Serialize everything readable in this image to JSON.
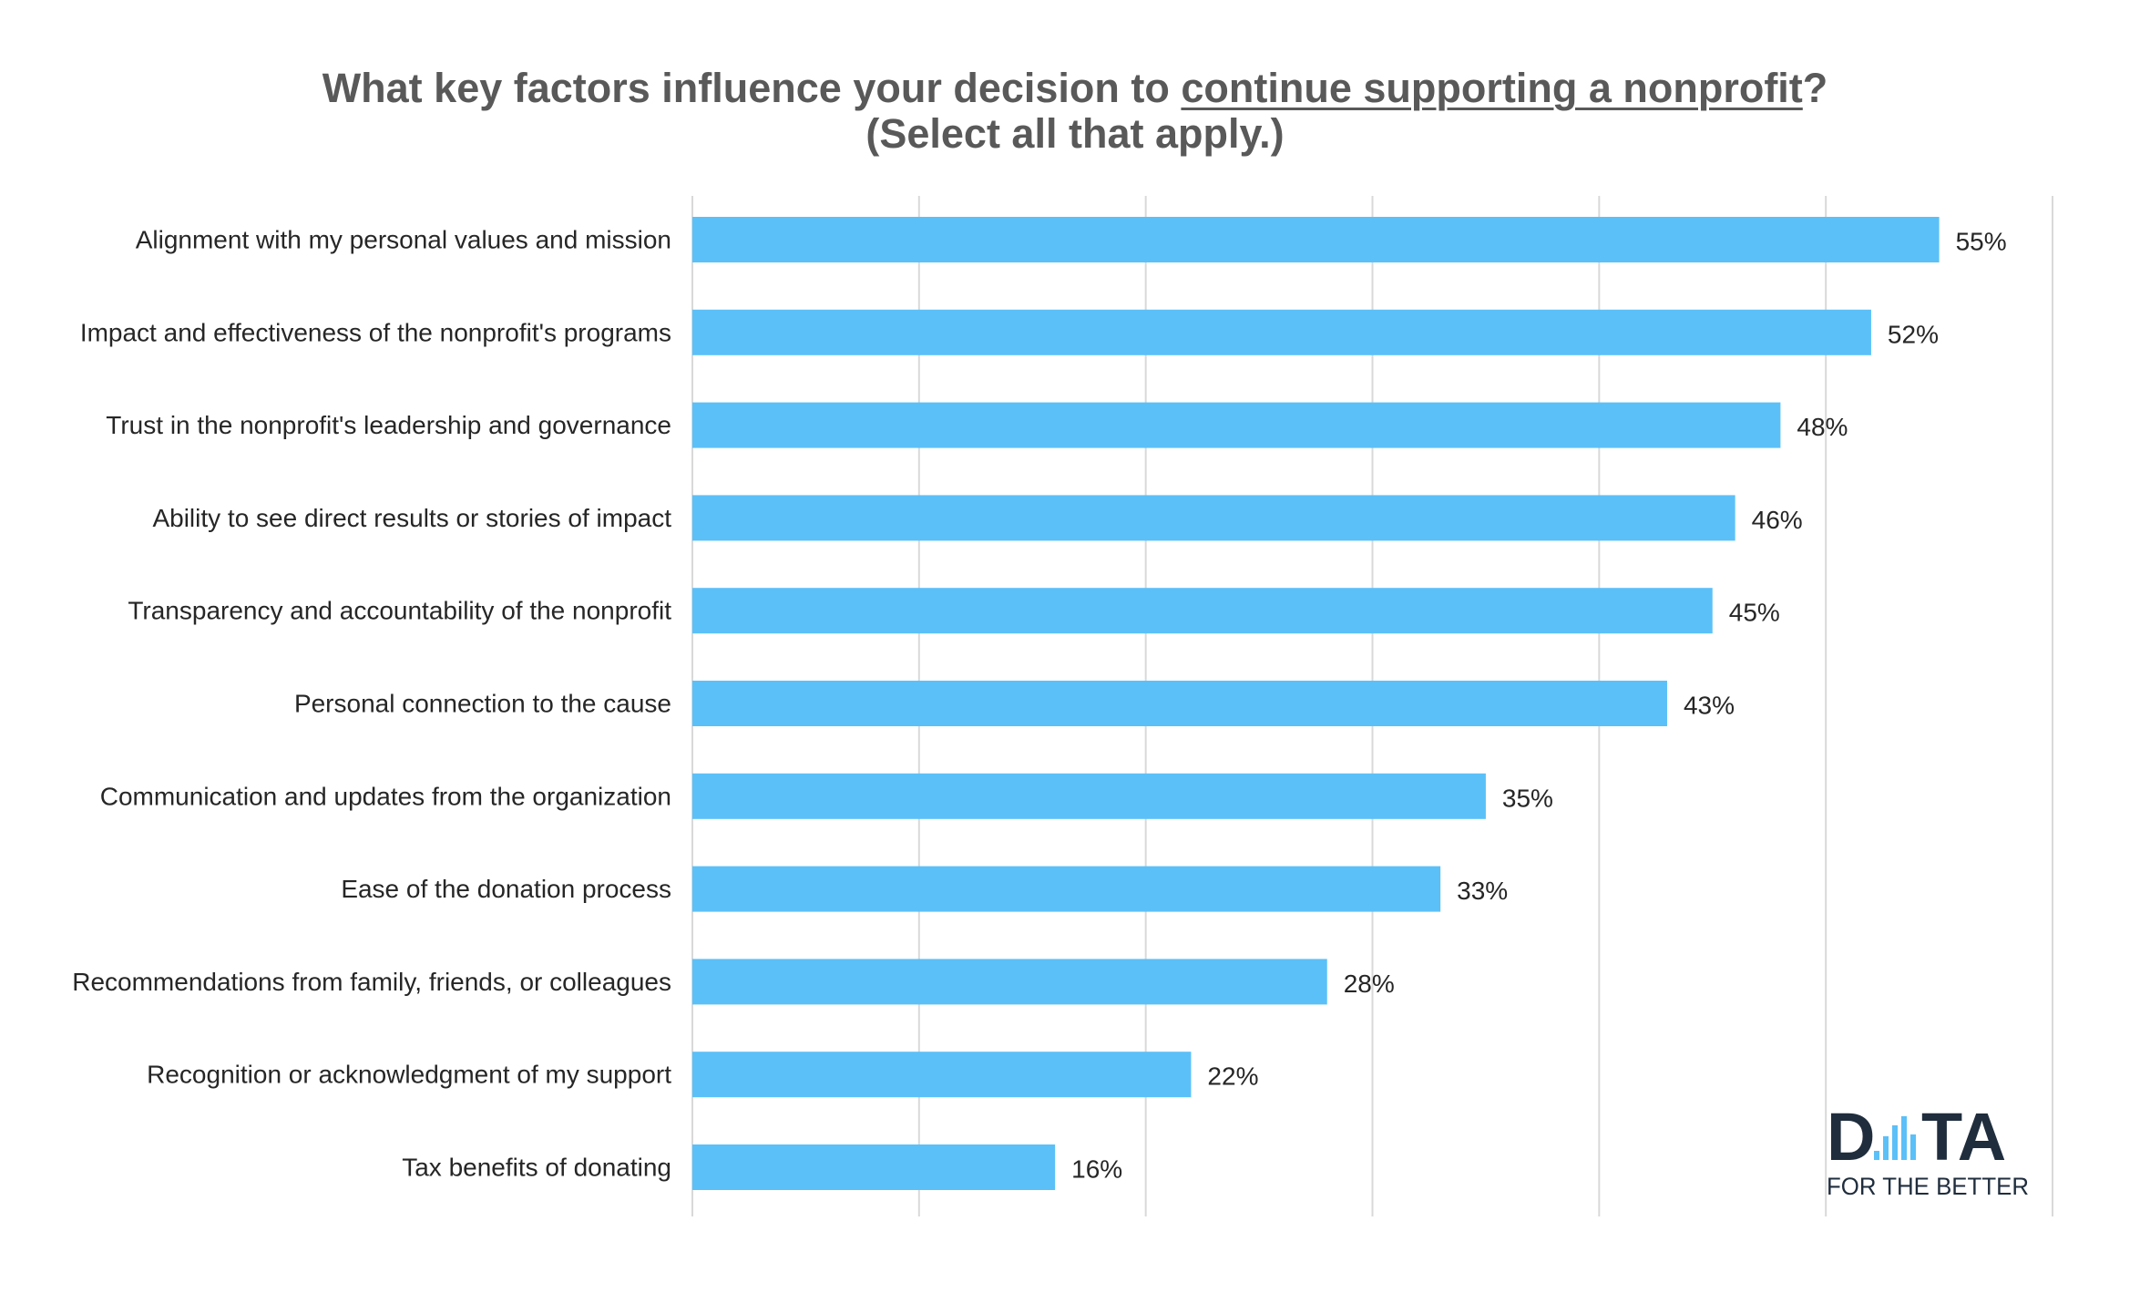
{
  "chart_data": {
    "type": "bar",
    "orientation": "horizontal",
    "title": {
      "prefix": "What key factors influence your decision to ",
      "emphasis": "continue supporting a nonprofit",
      "suffix": "?",
      "line2": "(Select all that apply.)"
    },
    "categories": [
      "Alignment with my personal values and mission",
      "Impact and effectiveness of the nonprofit's programs",
      "Trust in the nonprofit's leadership and governance",
      "Ability to see direct results or stories of impact",
      "Transparency and accountability of the nonprofit",
      "Personal connection to the cause",
      "Communication and updates from the organization",
      "Ease of the donation process",
      "Recommendations from family, friends, or colleagues",
      "Recognition or acknowledgment of my support",
      "Tax benefits of donating"
    ],
    "values": [
      55,
      52,
      48,
      46,
      45,
      43,
      35,
      33,
      28,
      22,
      16
    ],
    "value_labels": [
      "55%",
      "52%",
      "48%",
      "46%",
      "45%",
      "43%",
      "35%",
      "33%",
      "28%",
      "22%",
      "16%"
    ],
    "xlim": [
      0,
      60
    ],
    "gridlines": [
      0,
      10,
      20,
      30,
      40,
      50,
      60
    ],
    "grid": true,
    "legend": "none",
    "bar_color": "#5BC0F8",
    "grid_color": "#d9d9d9"
  },
  "logo": {
    "letter_d": "D",
    "letters_ta": "TA",
    "tagline": "FOR THE BETTER",
    "bar_colors": [
      "#5BC0F8",
      "#1f2d3d"
    ]
  }
}
